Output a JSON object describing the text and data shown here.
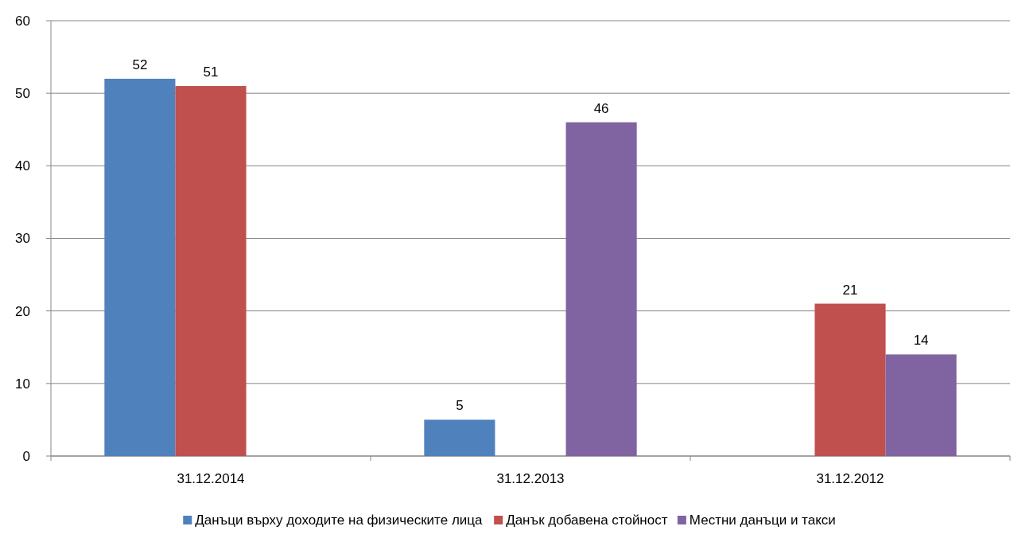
{
  "chart_data": {
    "type": "bar",
    "categories": [
      "31.12.2014",
      "31.12.2013",
      "31.12.2012"
    ],
    "series": [
      {
        "name": "Данъци върху доходите на физическите лица",
        "color": "#4f81bd",
        "values": [
          52,
          5,
          null
        ]
      },
      {
        "name": "Данък добавена стойност",
        "color": "#c0504d",
        "values": [
          51,
          null,
          21
        ]
      },
      {
        "name": "Местни данъци и такси",
        "color": "#8064a2",
        "values": [
          null,
          46,
          14
        ]
      }
    ],
    "ylim": [
      0,
      60
    ],
    "yticks": [
      0,
      10,
      20,
      30,
      40,
      50,
      60
    ],
    "grid": "y",
    "legend": "bottom",
    "data_labels": true
  }
}
